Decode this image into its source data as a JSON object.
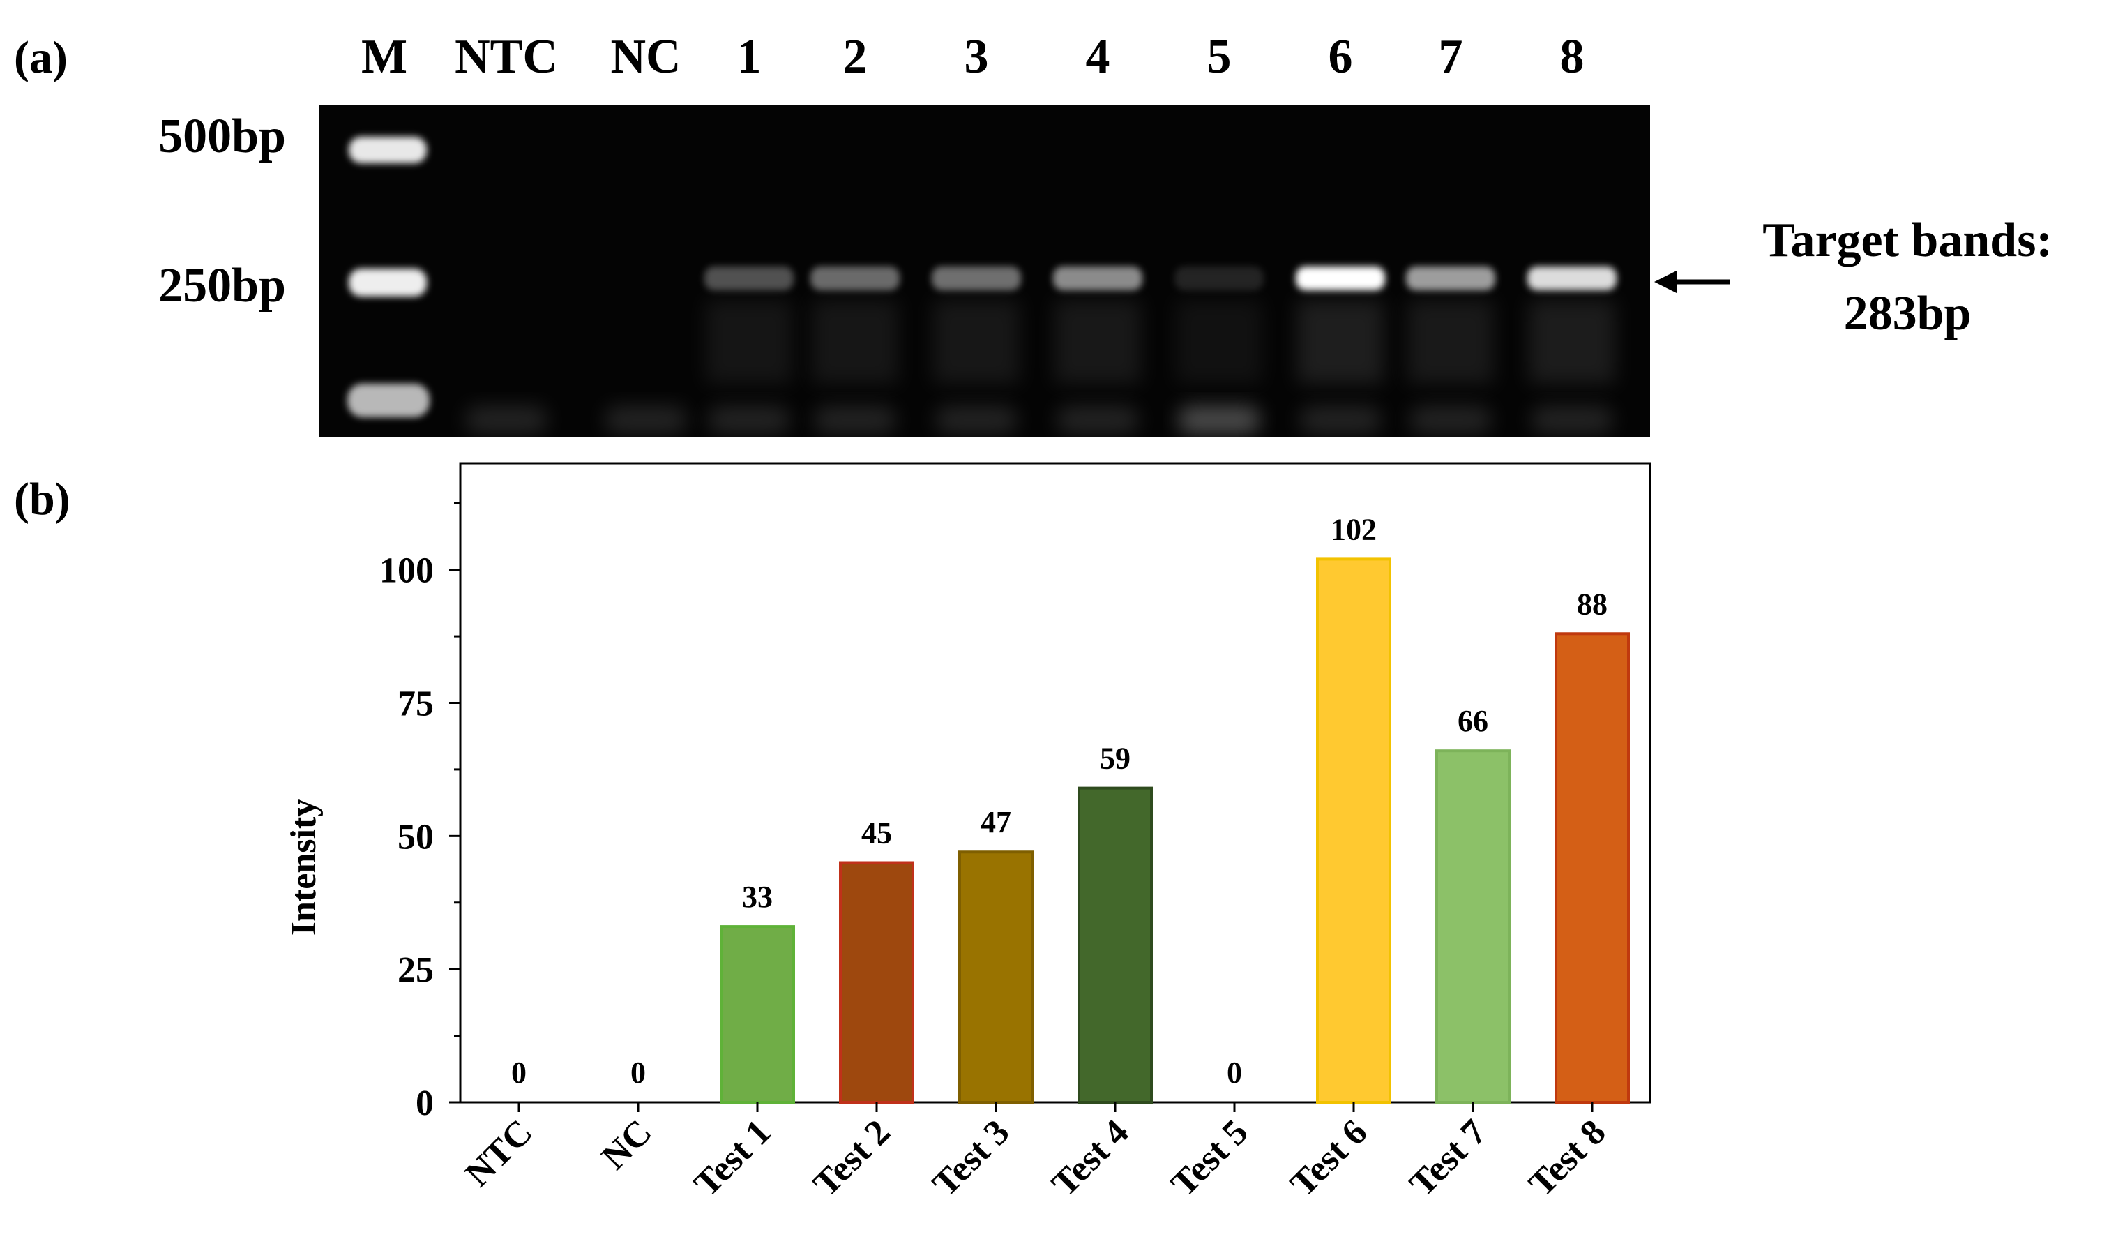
{
  "panel_a": {
    "label": "(a)",
    "marker_lane_label": "M",
    "lanes": [
      "NTC",
      "NC",
      "1",
      "2",
      "3",
      "4",
      "5",
      "6",
      "7",
      "8"
    ],
    "ladder_labels": [
      "500bp",
      "250bp"
    ],
    "target_label_line1": "Target bands:",
    "target_label_line2": "283bp",
    "band_relative_brightness": [
      0,
      0,
      0.32,
      0.44,
      0.46,
      0.58,
      0.04,
      1.0,
      0.65,
      0.86
    ]
  },
  "panel_b": {
    "label": "(b)"
  },
  "chart_data": {
    "type": "bar",
    "categories": [
      "NTC",
      "NC",
      "Test 1",
      "Test 2",
      "Test 3",
      "Test 4",
      "Test 5",
      "Test 6",
      "Test 7",
      "Test 8"
    ],
    "values": [
      0,
      0,
      33,
      45,
      47,
      59,
      0,
      102,
      66,
      88
    ],
    "data_labels": [
      "0",
      "0",
      "33",
      "45",
      "47",
      "59",
      "0",
      "102",
      "66",
      "88"
    ],
    "colors": [
      "#ffffff",
      "#ffffff",
      "#70ad47",
      "#9e480e",
      "#997300",
      "#43682b",
      "#ffffff",
      "#ffc930",
      "#8cc168",
      "#d45f16"
    ],
    "edge_colors": [
      "#ffffff",
      "#ffffff",
      "#5fb238",
      "#c0311a",
      "#7f5f00",
      "#2f4b1e",
      "#ffffff",
      "#f2c200",
      "#7db35a",
      "#c0390e"
    ],
    "title": "",
    "xlabel": "",
    "ylabel": "Intensity",
    "ylim": [
      0,
      120
    ],
    "yticks": [
      0,
      25,
      50,
      75,
      100
    ],
    "ytick_labels": [
      "0",
      "25",
      "50",
      "75",
      "100"
    ],
    "grid": false,
    "legend": "none"
  }
}
